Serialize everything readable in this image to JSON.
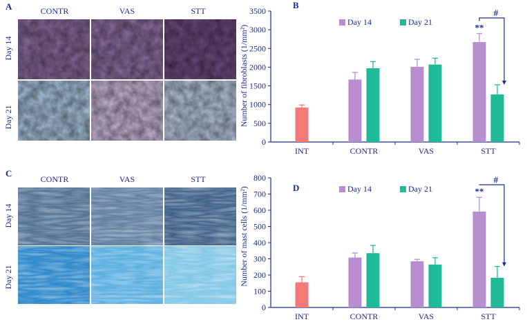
{
  "panels": {
    "A": {
      "letter": "A",
      "columns": [
        "CONTR",
        "VAS",
        "STT"
      ],
      "rows": [
        "Day 14",
        "Day 21"
      ],
      "stain_colors": {
        "day14": [
          "#8a6a9a",
          "#8d6fa0",
          "#6e4a7e"
        ],
        "day21": [
          "#a9c4dd",
          "#c9b8d8",
          "#b9c9df"
        ]
      }
    },
    "C": {
      "letter": "C",
      "columns": [
        "CONTR",
        "VAS",
        "STT"
      ],
      "rows": [
        "Day 14",
        "Day 21"
      ],
      "stain_colors": {
        "day14": [
          "#4f6f92",
          "#5f7da0",
          "#3d5f86"
        ],
        "day21": [
          "#2a86c9",
          "#59aee0",
          "#7fc6e6"
        ]
      }
    }
  },
  "legend": {
    "day14": "Day 14",
    "day21": "Day 21"
  },
  "colors": {
    "int": "#f47a7a",
    "day14": "#b98ed1",
    "day21": "#1fba97",
    "axis": "#1c2a8c",
    "text": "#1c2a8c",
    "bracket": "#1c2a8c"
  },
  "chart_data": [
    {
      "panel": "B",
      "type": "bar",
      "ylabel": "Number of fibroblasts (1/mm²)",
      "ylim": [
        0,
        3500
      ],
      "yticks": [
        0,
        500,
        1000,
        1500,
        2000,
        2500,
        3000,
        3500
      ],
      "categories": [
        "INT",
        "CONTR",
        "VAS",
        "STT"
      ],
      "series": [
        {
          "name": "INT",
          "values": [
            920,
            null,
            null,
            null
          ],
          "errors": [
            70,
            null,
            null,
            null
          ]
        },
        {
          "name": "Day 14",
          "values": [
            null,
            1670,
            2010,
            2670
          ],
          "errors": [
            null,
            190,
            200,
            230
          ]
        },
        {
          "name": "Day 21",
          "values": [
            null,
            1970,
            2070,
            1270
          ],
          "errors": [
            null,
            180,
            170,
            260
          ]
        }
      ],
      "annotations": {
        "significance": "**",
        "bracket": "#"
      }
    },
    {
      "panel": "D",
      "type": "bar",
      "ylabel": "Number of mast cells (1/mm²)",
      "ylim": [
        0,
        800
      ],
      "yticks": [
        0,
        100,
        200,
        300,
        400,
        500,
        600,
        700,
        800
      ],
      "categories": [
        "INT",
        "CONTR",
        "VAS",
        "STT"
      ],
      "series": [
        {
          "name": "INT",
          "values": [
            155,
            null,
            null,
            null
          ],
          "errors": [
            35,
            null,
            null,
            null
          ]
        },
        {
          "name": "Day 14",
          "values": [
            null,
            308,
            285,
            592
          ],
          "errors": [
            null,
            28,
            12,
            88
          ]
        },
        {
          "name": "Day 21",
          "values": [
            null,
            335,
            265,
            183
          ],
          "errors": [
            null,
            48,
            42,
            70
          ]
        }
      ],
      "annotations": {
        "significance": "**",
        "bracket": "#"
      }
    }
  ],
  "letters": {
    "B": "B",
    "D": "D"
  }
}
